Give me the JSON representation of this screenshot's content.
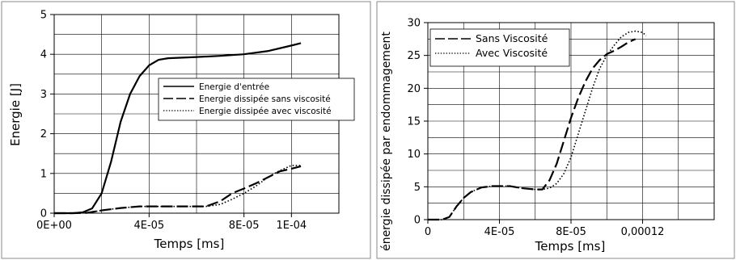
{
  "chart_data": [
    {
      "type": "line",
      "title": "",
      "xlabel": "Temps [ms]",
      "ylabel": "Energie [J]",
      "xlim": [
        0,
        0.00012
      ],
      "ylim": [
        0,
        5
      ],
      "xticks": [
        0,
        4e-05,
        8e-05,
        0.0001
      ],
      "xtick_labels": [
        "0E+00",
        "4E-05",
        "8E-05",
        "1E-04"
      ],
      "yticks": [
        0,
        1,
        2,
        3,
        4,
        5
      ],
      "ytick_labels": [
        "0",
        "1",
        "2",
        "3",
        "4",
        "5"
      ],
      "grid": true,
      "legend_position": "center-right",
      "series": [
        {
          "name": "Energie d'entrée",
          "style": "solid",
          "x": [
            0,
            8e-06,
            1.2e-05,
            1.6e-05,
            2e-05,
            2.4e-05,
            2.8e-05,
            3.2e-05,
            3.6e-05,
            4e-05,
            4.4e-05,
            4.8e-05,
            5.2e-05,
            5.6e-05,
            6e-05,
            7e-05,
            8e-05,
            9e-05,
            0.0001,
            0.000104
          ],
          "y": [
            0,
            0,
            0.02,
            0.12,
            0.5,
            1.3,
            2.3,
            3.0,
            3.45,
            3.72,
            3.86,
            3.9,
            3.91,
            3.92,
            3.93,
            3.96,
            4.0,
            4.08,
            4.22,
            4.28
          ]
        },
        {
          "name": "Energie dissipée sans viscosité",
          "style": "dashed",
          "x": [
            0,
            8e-06,
            1.4e-05,
            2e-05,
            2.8e-05,
            3.6e-05,
            4e-05,
            4.8e-05,
            5.6e-05,
            6.4e-05,
            7e-05,
            7.5e-05,
            8e-05,
            8.5e-05,
            9e-05,
            9.5e-05,
            0.0001,
            0.000104
          ],
          "y": [
            0,
            0,
            0.01,
            0.07,
            0.13,
            0.17,
            0.17,
            0.17,
            0.17,
            0.17,
            0.3,
            0.5,
            0.62,
            0.75,
            0.9,
            1.05,
            1.12,
            1.18
          ]
        },
        {
          "name": "Energie dissipée avec viscosité",
          "style": "dotted",
          "x": [
            0,
            8e-06,
            1.4e-05,
            2e-05,
            2.8e-05,
            3.6e-05,
            4e-05,
            4.8e-05,
            5.6e-05,
            6.4e-05,
            7e-05,
            7.5e-05,
            8e-05,
            8.5e-05,
            9e-05,
            9.5e-05,
            0.0001,
            0.000104
          ],
          "y": [
            0,
            0,
            0.01,
            0.07,
            0.13,
            0.17,
            0.17,
            0.17,
            0.17,
            0.17,
            0.22,
            0.35,
            0.5,
            0.68,
            0.9,
            1.07,
            1.2,
            1.2
          ]
        }
      ]
    },
    {
      "type": "line",
      "title": "",
      "xlabel": "Temps [ms]",
      "ylabel": "énergie dissipée par endommagement",
      "xlim": [
        0,
        0.00016
      ],
      "ylim": [
        0,
        30
      ],
      "xticks": [
        0,
        4e-05,
        8e-05,
        0.00012
      ],
      "xtick_labels": [
        "0",
        "4E-05",
        "8E-05",
        "0,00012"
      ],
      "yticks": [
        0,
        5,
        10,
        15,
        20,
        25,
        30
      ],
      "ytick_labels": [
        "0",
        "5",
        "10",
        "15",
        "20",
        "25",
        "30"
      ],
      "grid": true,
      "legend_position": "top-left",
      "series": [
        {
          "name": "Sans Viscosité",
          "style": "dashed",
          "x": [
            0,
            8e-06,
            1.2e-05,
            1.6e-05,
            2e-05,
            2.4e-05,
            3e-05,
            3.6e-05,
            4e-05,
            4.6e-05,
            5.2e-05,
            6e-05,
            6.4e-05,
            6.8e-05,
            7.2e-05,
            7.6e-05,
            8e-05,
            8.4e-05,
            8.8e-05,
            9.2e-05,
            9.6e-05,
            0.0001,
            0.000104,
            0.000108,
            0.000112,
            0.000116
          ],
          "y": [
            0,
            0,
            0.4,
            2.0,
            3.3,
            4.2,
            4.9,
            5.1,
            5.1,
            5.1,
            4.8,
            4.6,
            4.6,
            6.0,
            8.5,
            12.0,
            15.5,
            18.5,
            21.0,
            23.0,
            24.3,
            25.2,
            25.7,
            26.3,
            27.0,
            27.5
          ]
        },
        {
          "name": "Avec Viscosité",
          "style": "dotted",
          "x": [
            0,
            8e-06,
            1.2e-05,
            1.6e-05,
            2e-05,
            2.4e-05,
            3e-05,
            3.6e-05,
            4e-05,
            4.6e-05,
            5.2e-05,
            6e-05,
            6.4e-05,
            6.8e-05,
            7.2e-05,
            7.6e-05,
            8e-05,
            8.4e-05,
            8.8e-05,
            9.2e-05,
            9.6e-05,
            0.0001,
            0.000104,
            0.000108,
            0.000112,
            0.000116,
            0.00012,
            0.000122
          ],
          "y": [
            0,
            0,
            0.4,
            2.0,
            3.3,
            4.2,
            4.9,
            5.1,
            5.1,
            5.1,
            4.8,
            4.6,
            4.6,
            4.8,
            5.5,
            7.0,
            9.5,
            13.0,
            16.5,
            20.0,
            23.0,
            25.0,
            26.5,
            27.8,
            28.5,
            28.7,
            28.5,
            28.0
          ]
        }
      ]
    }
  ]
}
